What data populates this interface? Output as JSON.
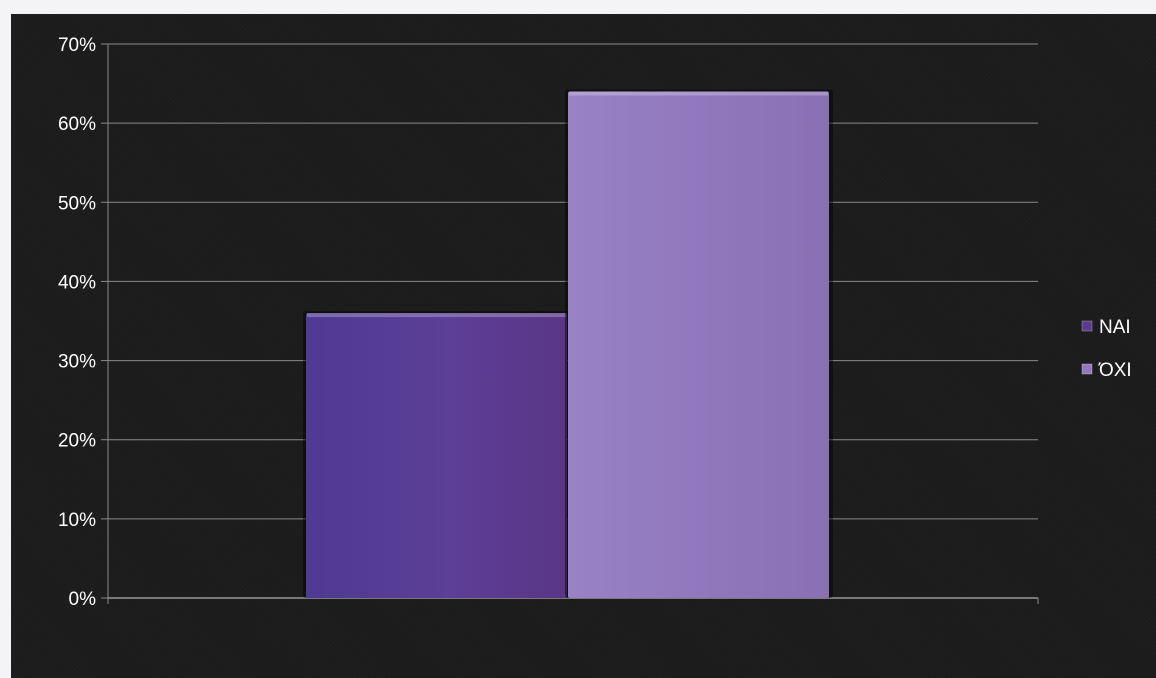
{
  "colors": {
    "background": "#1c1c1c",
    "gridline": "#8a8a8a",
    "text": "#ffffff",
    "series_nai": "#5a3b8e",
    "series_oxi": "#9478bd"
  },
  "chart_data": {
    "type": "bar",
    "title": "",
    "xlabel": "",
    "ylabel": "",
    "ylim": [
      0,
      0.7
    ],
    "y_ticks": [
      "0%",
      "10%",
      "20%",
      "30%",
      "40%",
      "50%",
      "60%",
      "70%"
    ],
    "y_tick_values": [
      0,
      0.1,
      0.2,
      0.3,
      0.4,
      0.5,
      0.6,
      0.7
    ],
    "grid": true,
    "legend_position": "right",
    "series": [
      {
        "name": "NAI",
        "values": [
          0.36
        ],
        "color": "#5a3b8e"
      },
      {
        "name": "ΌΧΙ",
        "values": [
          0.64
        ],
        "color": "#9478bd"
      }
    ]
  }
}
